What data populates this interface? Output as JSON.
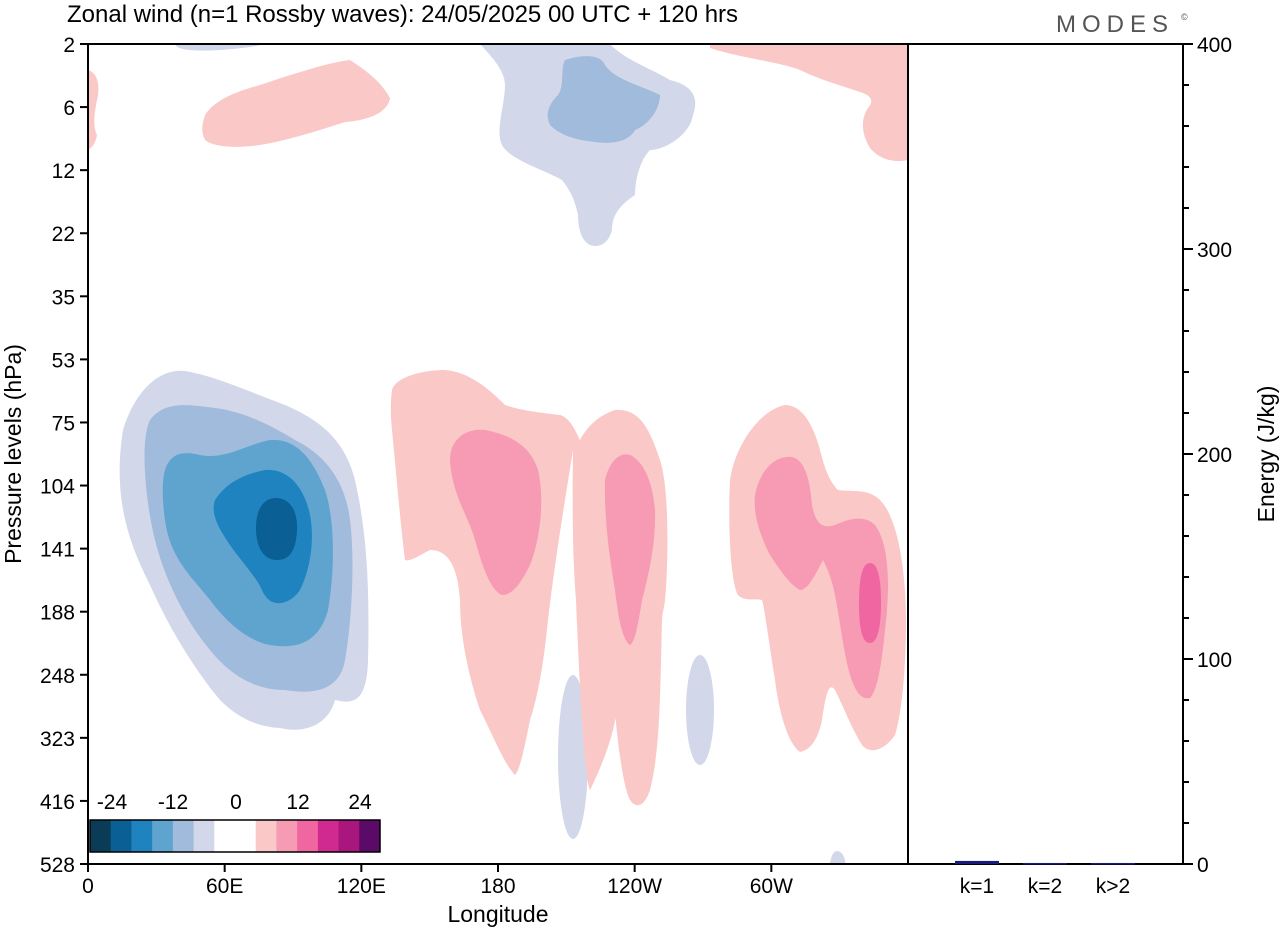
{
  "title": "Zonal wind (n=1 Rossby waves):  24/05/2025  00 UTC  + 120 hrs",
  "brand": "MODES",
  "brand_mark": "©",
  "chart_data": [
    {
      "type": "heatmap",
      "title": "Zonal wind (n=1 Rossby waves):  24/05/2025  00 UTC  + 120 hrs",
      "xlabel": "Longitude",
      "ylabel": "Pressure levels (hPa)",
      "x_ticks": [
        "0",
        "60E",
        "120E",
        "180",
        "120W",
        "60W"
      ],
      "x_tick_values": [
        0,
        60,
        120,
        180,
        240,
        300
      ],
      "xlim": [
        0,
        360
      ],
      "y_ticks": [
        "2",
        "6",
        "12",
        "22",
        "35",
        "53",
        "75",
        "104",
        "141",
        "188",
        "248",
        "323",
        "416",
        "528"
      ],
      "y_scale": "pressure levels, top to bottom",
      "colorbar": {
        "tick_labels": [
          "-24",
          "-12",
          "0",
          "12",
          "24"
        ],
        "colors": [
          "#0b3c57",
          "#0a5f94",
          "#1f83c0",
          "#5fa4cf",
          "#a0bbdb",
          "#d3d7ea",
          "#ffffff",
          "#ffffff",
          "#fac8c7",
          "#f79ab3",
          "#f066a1",
          "#d02990",
          "#a8167e",
          "#5b0a67"
        ]
      },
      "features": [
        {
          "sign": "negative",
          "center_lon": 82,
          "center_level": "116",
          "peak": -21,
          "extent_lon": [
            13,
            125
          ],
          "extent_levels": [
            "53",
            "323"
          ]
        },
        {
          "sign": "negative",
          "center_lon": 210,
          "center_level": "6",
          "peak": -12,
          "extent_lon": [
            180,
            265
          ],
          "extent_levels": [
            "2",
            "22"
          ]
        },
        {
          "sign": "positive",
          "center_lon": 100,
          "center_level": "6",
          "peak": 3,
          "extent_lon": [
            50,
            130
          ],
          "extent_levels": [
            "4",
            "9"
          ]
        },
        {
          "sign": "positive",
          "center_lon": 340,
          "center_level": "4",
          "peak": 3,
          "extent_lon": [
            275,
            360
          ],
          "extent_levels": [
            "2",
            "10"
          ]
        },
        {
          "sign": "positive",
          "center_lon": 190,
          "center_level": "104",
          "peak": 9,
          "extent_lon": [
            135,
            255
          ],
          "extent_levels": [
            "53",
            "323"
          ]
        },
        {
          "sign": "positive",
          "center_lon": 238,
          "center_level": "141",
          "peak": 9,
          "extent_lon": [
            220,
            255
          ],
          "extent_levels": [
            "104",
            "416"
          ]
        },
        {
          "sign": "positive",
          "center_lon": 344,
          "center_level": "188",
          "peak": 15,
          "extent_lon": [
            280,
            360
          ],
          "extent_levels": [
            "75",
            "323"
          ]
        },
        {
          "sign": "negative",
          "center_lon": 213,
          "center_level": "323",
          "peak": -3,
          "extent_lon": [
            205,
            220
          ],
          "extent_levels": [
            "248",
            "416"
          ]
        },
        {
          "sign": "negative",
          "center_lon": 268,
          "center_level": "285",
          "peak": -3,
          "extent_lon": [
            262,
            275
          ],
          "extent_levels": [
            "248",
            "323"
          ]
        }
      ]
    },
    {
      "type": "bar",
      "categories": [
        "k=1",
        "k=2",
        "k>2"
      ],
      "values": [
        1.5,
        0.5,
        0.5
      ],
      "ylabel": "Energy (J/kg)",
      "ylim": [
        0,
        400
      ],
      "y_ticks": [
        "0",
        "100",
        "200",
        "300",
        "400"
      ],
      "bar_color": "#1a1a7a"
    }
  ]
}
